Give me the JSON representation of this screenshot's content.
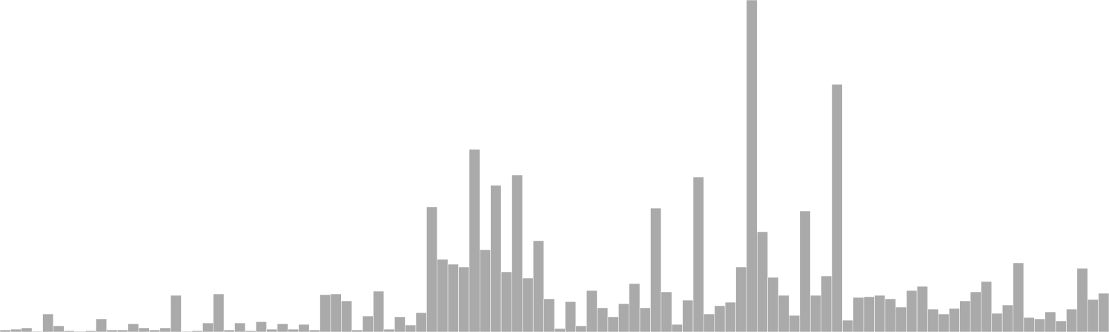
{
  "chart_data": {
    "type": "bar",
    "title": "",
    "xlabel": "",
    "ylabel": "",
    "ylim": [
      0,
      480
    ],
    "grid": false,
    "legend": "none",
    "bar_color": "#aaaaaa",
    "values": [
      3,
      4,
      6,
      1,
      26,
      9,
      2,
      1,
      2,
      19,
      3,
      3,
      12,
      6,
      3,
      6,
      53,
      1,
      2,
      13,
      55,
      3,
      13,
      2,
      15,
      4,
      12,
      4,
      11,
      3,
      54,
      55,
      45,
      3,
      23,
      59,
      4,
      22,
      10,
      28,
      181,
      105,
      98,
      94,
      264,
      119,
      212,
      87,
      227,
      78,
      132,
      48,
      5,
      44,
      9,
      60,
      35,
      22,
      41,
      70,
      35,
      179,
      58,
      11,
      46,
      224,
      26,
      38,
      43,
      94,
      480,
      145,
      79,
      53,
      24,
      175,
      53,
      81,
      358,
      17,
      50,
      51,
      53,
      48,
      36,
      60,
      66,
      33,
      26,
      34,
      45,
      58,
      73,
      27,
      39,
      100,
      21,
      19,
      29,
      16,
      33,
      92,
      47,
      56
    ]
  }
}
